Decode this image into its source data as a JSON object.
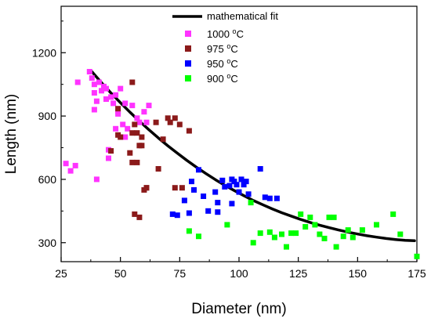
{
  "chart_data": {
    "type": "scatter",
    "title": "",
    "xlabel": "Diameter (nm)",
    "ylabel": "Length (nm)",
    "xlim": [
      25,
      175
    ],
    "ylim": [
      210,
      1420
    ],
    "x_ticks": [
      25,
      50,
      75,
      100,
      125,
      150,
      175
    ],
    "y_ticks": [
      300,
      600,
      900,
      1200
    ],
    "x_tick_labels": [
      "25",
      "50",
      "75",
      "100",
      "125",
      "150",
      "175"
    ],
    "y_tick_labels": [
      "300",
      "600",
      "900",
      "1200"
    ],
    "grid": false,
    "legend_position": "top-right",
    "fit": {
      "name": "mathematical fit",
      "color": "#000000",
      "x": [
        38,
        42,
        46,
        50,
        54,
        58,
        62,
        66,
        70,
        74,
        78,
        82,
        86,
        90,
        94,
        98,
        102,
        106,
        110,
        114,
        118,
        122,
        126,
        130,
        134,
        138,
        142,
        146,
        150,
        154,
        158,
        162,
        166,
        170,
        174
      ],
      "y": [
        1110,
        1058,
        1009,
        963,
        918,
        876,
        835,
        796,
        759,
        724,
        690,
        658,
        628,
        599,
        572,
        547,
        523,
        500,
        480,
        460,
        442,
        426,
        410,
        396,
        383,
        371,
        360,
        350,
        341,
        333,
        326,
        320,
        315,
        311,
        309
      ]
    },
    "series": [
      {
        "name": "1000 °C",
        "name_prefix": "1000 ",
        "name_sup": "o",
        "name_suffix": "C",
        "color": "#ff33ff",
        "points": [
          [
            27,
            675
          ],
          [
            29,
            640
          ],
          [
            31,
            665
          ],
          [
            32,
            1060
          ],
          [
            37,
            1110
          ],
          [
            38,
            1080
          ],
          [
            39,
            1050
          ],
          [
            39,
            1010
          ],
          [
            39,
            930
          ],
          [
            40,
            970
          ],
          [
            40,
            600
          ],
          [
            41,
            1060
          ],
          [
            42,
            1020
          ],
          [
            43,
            1040
          ],
          [
            44,
            1030
          ],
          [
            44,
            980
          ],
          [
            45,
            700
          ],
          [
            45,
            740
          ],
          [
            46,
            990
          ],
          [
            47,
            960
          ],
          [
            48,
            1000
          ],
          [
            48,
            840
          ],
          [
            49,
            920
          ],
          [
            49,
            910
          ],
          [
            50,
            1030
          ],
          [
            51,
            860
          ],
          [
            52,
            960
          ],
          [
            52,
            800
          ],
          [
            53,
            840
          ],
          [
            55,
            950
          ],
          [
            57,
            890
          ],
          [
            58,
            870
          ],
          [
            60,
            920
          ],
          [
            61,
            870
          ],
          [
            62,
            950
          ]
        ]
      },
      {
        "name": "975 °C",
        "name_prefix": "975 ",
        "name_sup": "o",
        "name_suffix": "C",
        "color": "#8b1a1a",
        "points": [
          [
            46,
            735
          ],
          [
            49,
            935
          ],
          [
            49,
            810
          ],
          [
            50,
            800
          ],
          [
            54,
            725
          ],
          [
            55,
            680
          ],
          [
            55,
            820
          ],
          [
            55,
            1060
          ],
          [
            56,
            860
          ],
          [
            56,
            435
          ],
          [
            57,
            820
          ],
          [
            57,
            680
          ],
          [
            58,
            420
          ],
          [
            58,
            760
          ],
          [
            59,
            800
          ],
          [
            59,
            760
          ],
          [
            60,
            550
          ],
          [
            61,
            560
          ],
          [
            61,
            560
          ],
          [
            65,
            870
          ],
          [
            66,
            650
          ],
          [
            68,
            790
          ],
          [
            70,
            890
          ],
          [
            71,
            870
          ],
          [
            73,
            890
          ],
          [
            73,
            560
          ],
          [
            75,
            860
          ],
          [
            76,
            560
          ],
          [
            79,
            830
          ]
        ]
      },
      {
        "name": "950 °C",
        "name_prefix": "950 ",
        "name_sup": "o",
        "name_suffix": "C",
        "color": "#0000ff",
        "points": [
          [
            72,
            435
          ],
          [
            74,
            430
          ],
          [
            77,
            500
          ],
          [
            79,
            440
          ],
          [
            80,
            590
          ],
          [
            81,
            550
          ],
          [
            83,
            645
          ],
          [
            85,
            520
          ],
          [
            87,
            450
          ],
          [
            90,
            540
          ],
          [
            91,
            490
          ],
          [
            91,
            445
          ],
          [
            93,
            595
          ],
          [
            94,
            565
          ],
          [
            96,
            570
          ],
          [
            97,
            485
          ],
          [
            97,
            600
          ],
          [
            98,
            590
          ],
          [
            99,
            575
          ],
          [
            100,
            540
          ],
          [
            101,
            600
          ],
          [
            102,
            575
          ],
          [
            103,
            590
          ],
          [
            104,
            530
          ],
          [
            109,
            650
          ],
          [
            111,
            515
          ],
          [
            113,
            510
          ],
          [
            116,
            510
          ]
        ]
      },
      {
        "name": "900 °C",
        "name_prefix": "900 ",
        "name_sup": "o",
        "name_suffix": "C",
        "color": "#00ff00",
        "points": [
          [
            79,
            355
          ],
          [
            83,
            330
          ],
          [
            95,
            385
          ],
          [
            105,
            490
          ],
          [
            106,
            300
          ],
          [
            109,
            345
          ],
          [
            113,
            350
          ],
          [
            115,
            325
          ],
          [
            118,
            340
          ],
          [
            120,
            280
          ],
          [
            122,
            345
          ],
          [
            124,
            345
          ],
          [
            126,
            435
          ],
          [
            128,
            375
          ],
          [
            130,
            420
          ],
          [
            132,
            385
          ],
          [
            134,
            340
          ],
          [
            136,
            320
          ],
          [
            138,
            420
          ],
          [
            140,
            420
          ],
          [
            141,
            280
          ],
          [
            144,
            330
          ],
          [
            146,
            360
          ],
          [
            148,
            325
          ],
          [
            152,
            360
          ],
          [
            158,
            385
          ],
          [
            165,
            435
          ],
          [
            168,
            340
          ],
          [
            175,
            235
          ]
        ]
      }
    ]
  }
}
